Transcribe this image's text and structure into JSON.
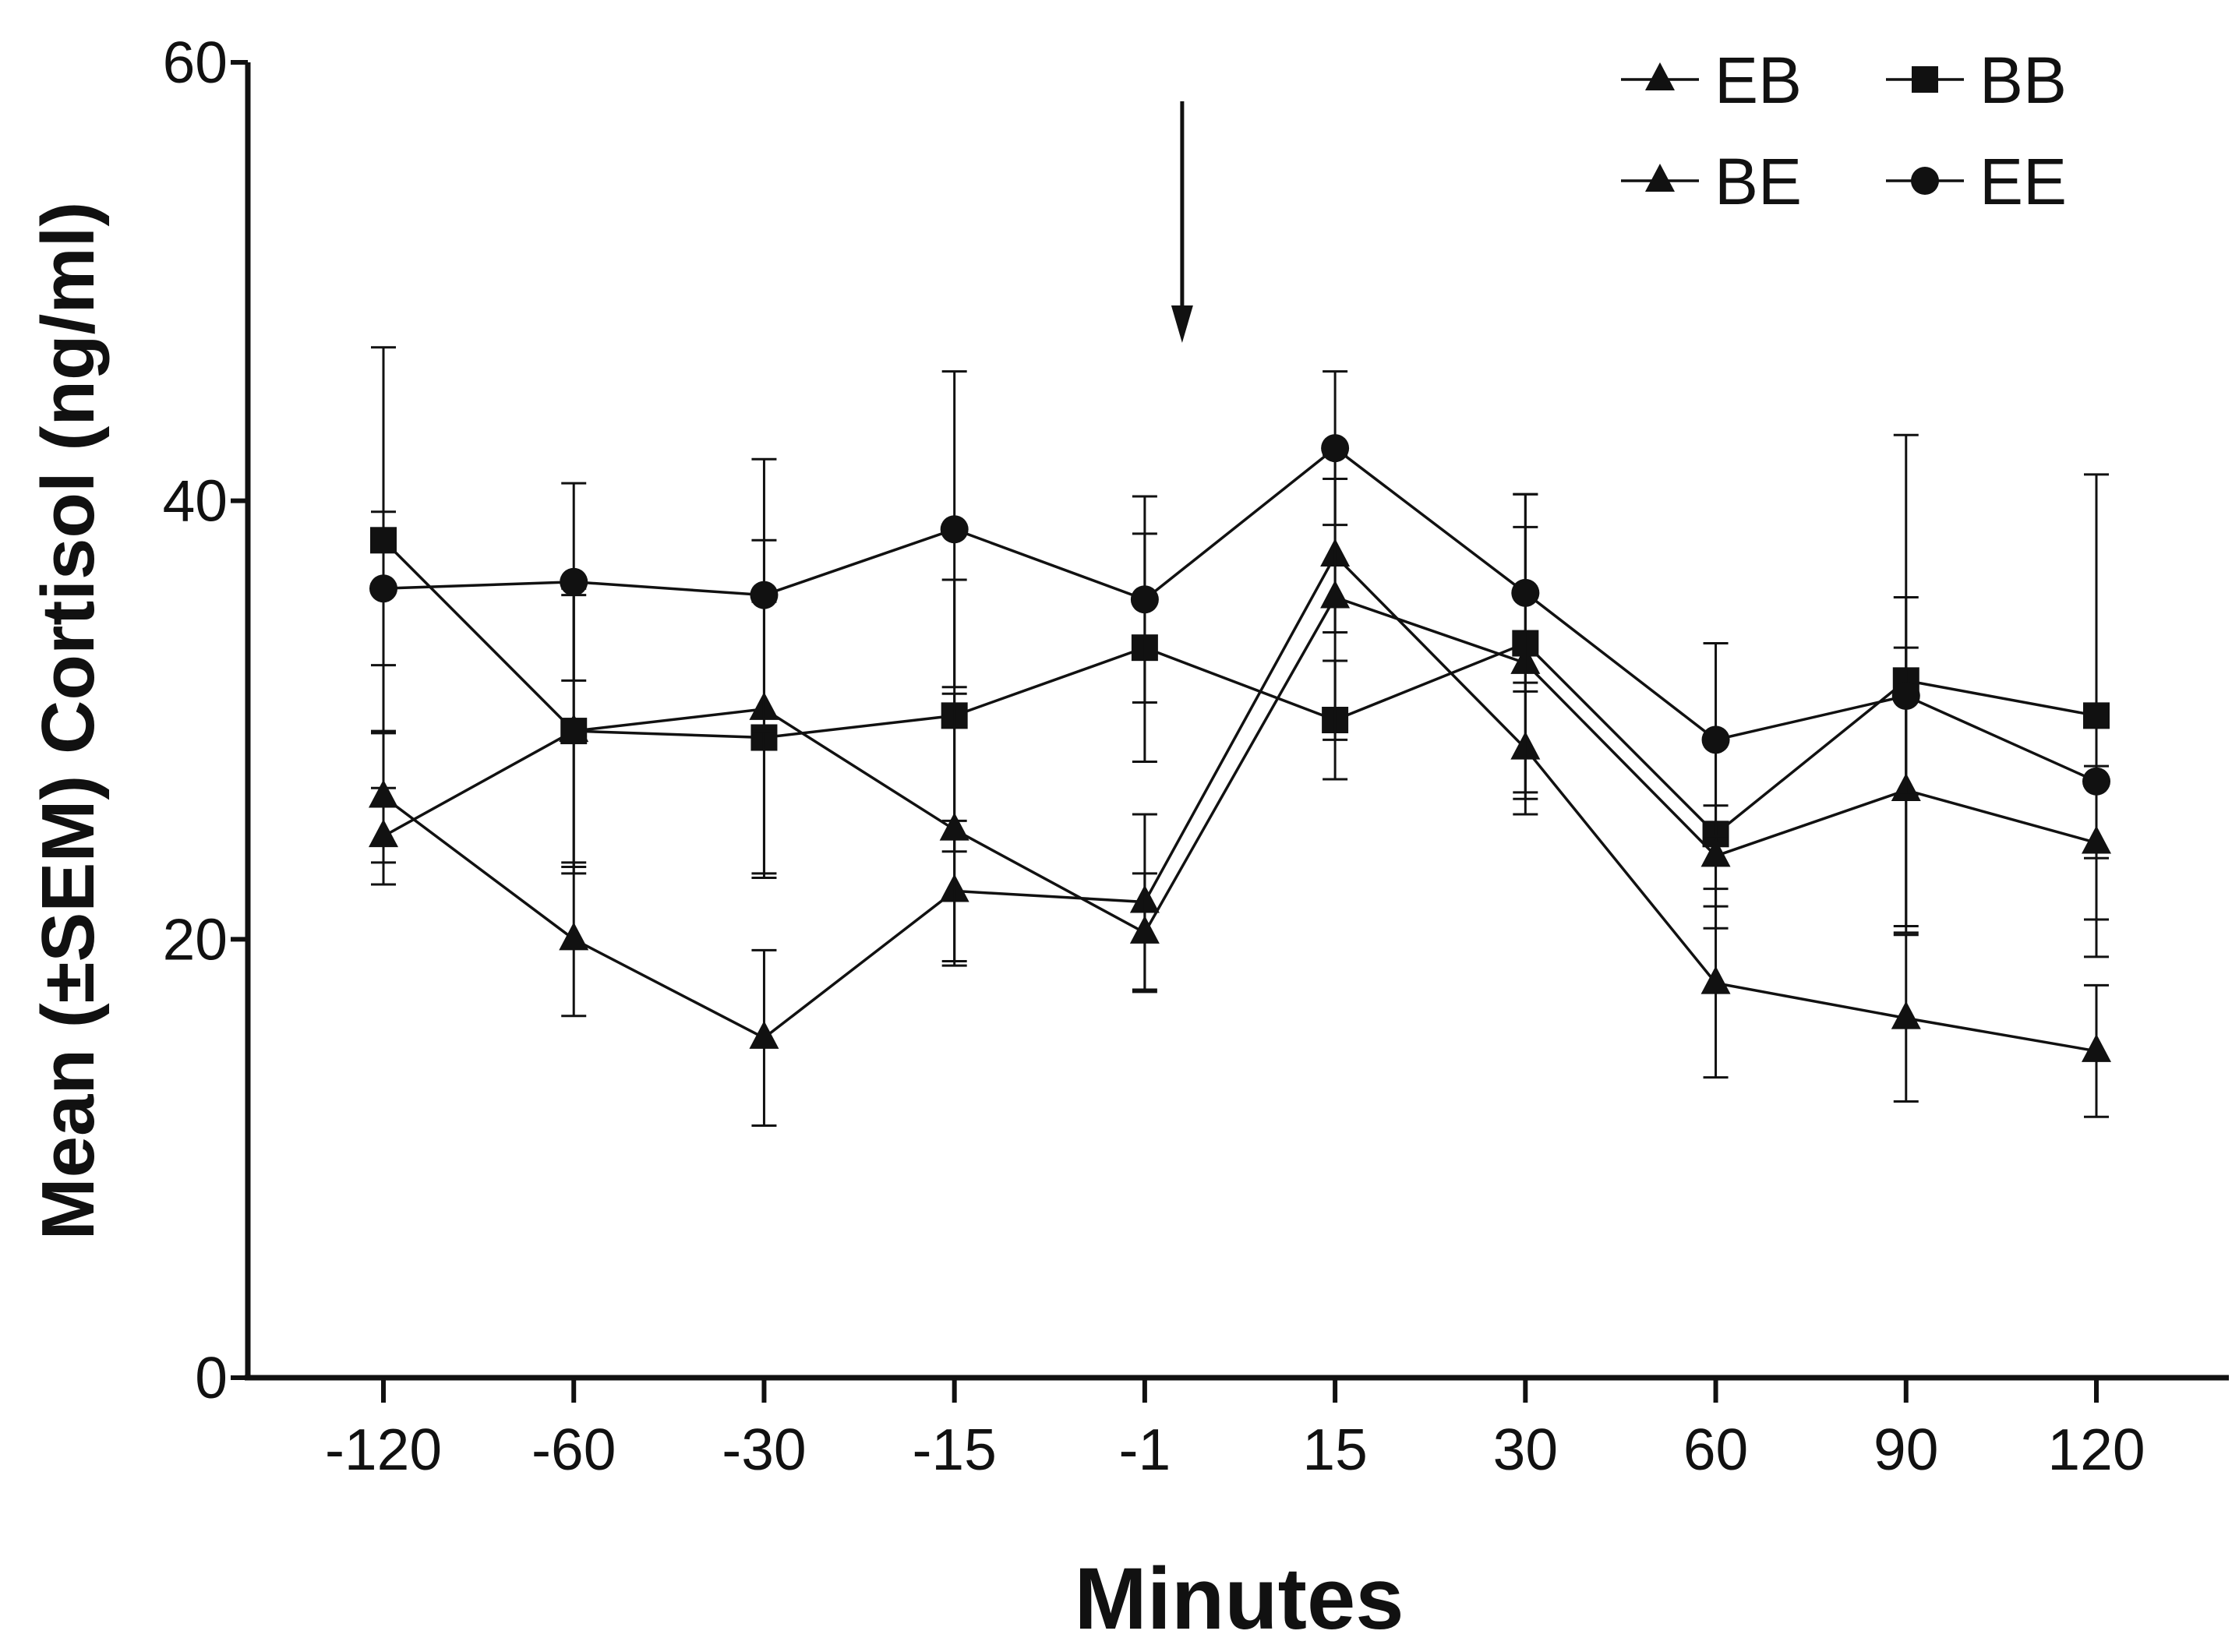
{
  "chart_data": {
    "type": "line",
    "title": "",
    "xlabel": "Minutes",
    "ylabel": "Mean (±SEM) Cortisol (ng/ml)",
    "categories": [
      "-120",
      "-60",
      "-30",
      "-15",
      "-1",
      "15",
      "30",
      "60",
      "90",
      "120"
    ],
    "ylim": [
      0,
      60
    ],
    "yticks": [
      "0",
      "20",
      "40",
      "60"
    ],
    "grid": false,
    "legend_position": "top-right",
    "annotation": {
      "type": "arrow",
      "x_between": [
        "-1",
        "15"
      ],
      "position": "near -1",
      "direction": "down"
    },
    "series": [
      {
        "name": "EB",
        "marker": "triangle",
        "values": [
          26.5,
          20.0,
          15.5,
          22.2,
          21.7,
          37.5,
          28.7,
          18.0,
          16.4,
          14.9
        ],
        "errors": [
          3.0,
          3.5,
          4.0,
          3.2,
          4.0,
          3.5,
          3.0,
          4.3,
          3.8,
          3.0
        ]
      },
      {
        "name": "BB",
        "marker": "square",
        "values": [
          38.2,
          29.5,
          29.2,
          30.2,
          33.3,
          30.0,
          33.5,
          24.8,
          31.8,
          30.2
        ],
        "errors": [
          8.8,
          6.2,
          6.2,
          6.2,
          5.2,
          2.7,
          6.8,
          4.3,
          11.2,
          11.0
        ]
      },
      {
        "name": "BE",
        "marker": "triangle",
        "values": [
          24.7,
          29.5,
          30.5,
          25.0,
          20.3,
          35.6,
          32.6,
          23.8,
          26.8,
          24.4
        ],
        "errors": [
          2.2,
          6.5,
          7.7,
          6.2,
          2.7,
          6.5,
          6.2,
          2.3,
          6.5,
          3.5
        ]
      },
      {
        "name": "EE",
        "marker": "circle",
        "values": [
          36.0,
          36.3,
          35.7,
          38.7,
          35.5,
          42.4,
          35.8,
          29.1,
          31.1,
          27.2
        ],
        "errors": [
          3.5,
          4.5,
          6.2,
          7.2,
          4.7,
          3.5,
          4.5,
          4.4,
          4.5,
          3.5
        ]
      }
    ]
  }
}
